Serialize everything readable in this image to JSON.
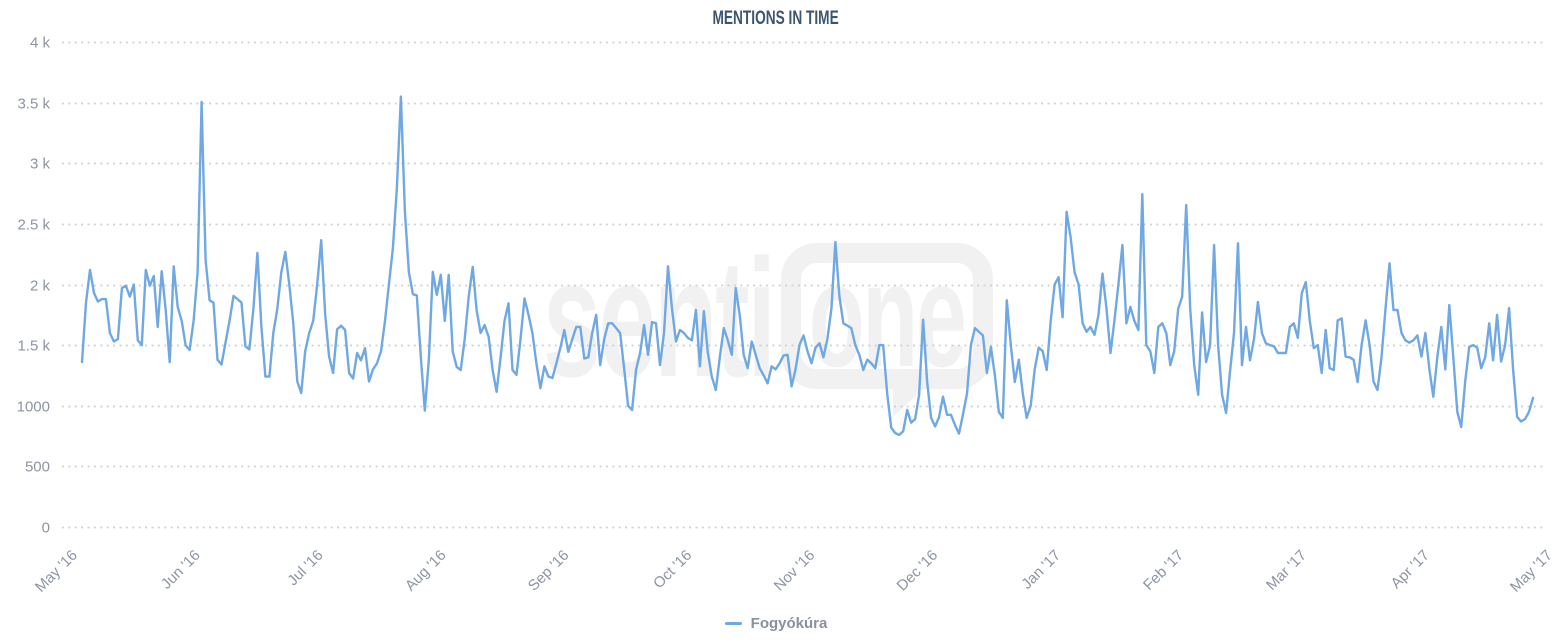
{
  "title": "MENTIONS IN TIME",
  "legend": {
    "label": "Fogyókúra"
  },
  "watermark": {
    "left": "senti",
    "right": "one"
  },
  "colors": {
    "line": "#6fa8e3",
    "title": "#3c566f",
    "axis_label": "#8d95a3",
    "gridline": "#cccccc",
    "legend_text": "#8a919c",
    "watermark": "#f1f1f2"
  },
  "chart_data": {
    "type": "line",
    "title": "MENTIONS IN TIME",
    "xlabel": "",
    "ylabel": "",
    "ylim": [
      0,
      4000
    ],
    "grid": "horizontal dotted",
    "legend_position": "bottom-center",
    "x_labels": [
      "May '16",
      "Jun '16",
      "Jul '16",
      "Aug '16",
      "Sep '16",
      "Oct '16",
      "Nov '16",
      "Dec '16",
      "Jan '17",
      "Feb '17",
      "Mar '17",
      "Apr '17",
      "May '17"
    ],
    "y_ticks": [
      {
        "value": 4000,
        "label": "4 k"
      },
      {
        "value": 3500,
        "label": "3.5 k"
      },
      {
        "value": 3000,
        "label": "3 k"
      },
      {
        "value": 2500,
        "label": "2.5 k"
      },
      {
        "value": 2000,
        "label": "2 k"
      },
      {
        "value": 1500,
        "label": "1.5 k"
      },
      {
        "value": 1000,
        "label": "1000"
      },
      {
        "value": 500,
        "label": "500"
      },
      {
        "value": 0,
        "label": "0"
      }
    ],
    "series": [
      {
        "name": "Fogyókúra",
        "color": "#6fa8e3",
        "cadence": "daily",
        "x_range": [
          "May '16",
          "May '17"
        ],
        "values": [
          1360,
          1850,
          2120,
          1930,
          1860,
          1880,
          1880,
          1600,
          1530,
          1550,
          1970,
          1990,
          1900,
          2000,
          1540,
          1500,
          2120,
          1990,
          2070,
          1650,
          2110,
          1790,
          1360,
          2150,
          1815,
          1700,
          1500,
          1460,
          1700,
          2100,
          3505,
          2200,
          1870,
          1850,
          1380,
          1340,
          1520,
          1700,
          1905,
          1880,
          1850,
          1490,
          1465,
          1800,
          2260,
          1650,
          1240,
          1240,
          1600,
          1800,
          2100,
          2270,
          2000,
          1680,
          1200,
          1105,
          1450,
          1600,
          1700,
          2000,
          2365,
          1750,
          1405,
          1270,
          1630,
          1660,
          1625,
          1270,
          1225,
          1435,
          1375,
          1475,
          1200,
          1300,
          1350,
          1450,
          1700,
          2000,
          2300,
          2800,
          3550,
          2600,
          2100,
          1920,
          1910,
          1405,
          960,
          1375,
          2105,
          1915,
          2080,
          1700,
          2080,
          1450,
          1320,
          1295,
          1550,
          1900,
          2145,
          1790,
          1600,
          1665,
          1570,
          1295,
          1115,
          1400,
          1700,
          1845,
          1295,
          1255,
          1550,
          1885,
          1750,
          1600,
          1350,
          1145,
          1325,
          1240,
          1230,
          1350,
          1480,
          1625,
          1445,
          1550,
          1650,
          1650,
          1390,
          1400,
          1600,
          1750,
          1335,
          1550,
          1680,
          1680,
          1640,
          1600,
          1310,
          1000,
          965,
          1300,
          1435,
          1665,
          1420,
          1690,
          1680,
          1335,
          1600,
          2150,
          1800,
          1530,
          1625,
          1600,
          1560,
          1540,
          1790,
          1325,
          1780,
          1440,
          1240,
          1130,
          1400,
          1640,
          1540,
          1420,
          1970,
          1750,
          1420,
          1310,
          1530,
          1420,
          1310,
          1250,
          1185,
          1325,
          1300,
          1350,
          1415,
          1420,
          1160,
          1300,
          1500,
          1580,
          1450,
          1350,
          1480,
          1515,
          1400,
          1550,
          1800,
          2350,
          1900,
          1680,
          1660,
          1640,
          1500,
          1420,
          1295,
          1380,
          1350,
          1310,
          1500,
          1500,
          1100,
          820,
          775,
          760,
          790,
          965,
          860,
          890,
          1090,
          1710,
          1200,
          900,
          830,
          905,
          1075,
          925,
          925,
          840,
          770,
          930,
          1100,
          1500,
          1640,
          1610,
          1580,
          1270,
          1485,
          1250,
          950,
          900,
          1870,
          1500,
          1195,
          1380,
          1100,
          900,
          1000,
          1300,
          1480,
          1450,
          1295,
          1700,
          2000,
          2060,
          1730,
          2600,
          2390,
          2100,
          2000,
          1680,
          1610,
          1650,
          1585,
          1750,
          2090,
          1800,
          1435,
          1700,
          2000,
          2325,
          1680,
          1815,
          1700,
          1625,
          2745,
          1500,
          1450,
          1270,
          1650,
          1680,
          1600,
          1335,
          1450,
          1800,
          1900,
          2655,
          1800,
          1335,
          1090,
          1770,
          1360,
          1500,
          2325,
          1500,
          1090,
          940,
          1280,
          1600,
          2340,
          1335,
          1650,
          1375,
          1550,
          1855,
          1600,
          1515,
          1500,
          1490,
          1435,
          1435,
          1435,
          1650,
          1680,
          1560,
          1930,
          2020,
          1700,
          1475,
          1500,
          1270,
          1625,
          1310,
          1295,
          1705,
          1720,
          1405,
          1400,
          1380,
          1195,
          1500,
          1705,
          1500,
          1200,
          1130,
          1400,
          1800,
          2175,
          1790,
          1790,
          1600,
          1540,
          1520,
          1540,
          1580,
          1405,
          1600,
          1300,
          1075,
          1400,
          1650,
          1300,
          1830,
          1400,
          950,
          825,
          1200,
          1485,
          1500,
          1480,
          1310,
          1400,
          1680,
          1375,
          1750,
          1365,
          1500,
          1805,
          1300,
          910,
          870,
          890,
          950,
          1065
        ]
      }
    ]
  }
}
